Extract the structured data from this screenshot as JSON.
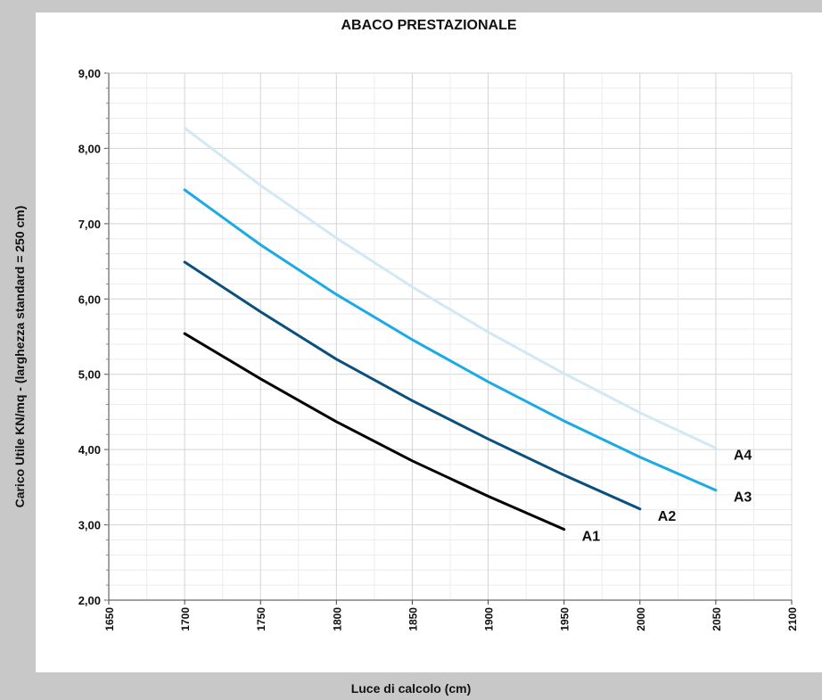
{
  "chart_data": {
    "type": "line",
    "title": "ABACO PRESTAZIONALE",
    "xlabel": "Luce di calcolo (cm)",
    "ylabel": "Carico Utile KN/mq - (larghezza standard = 250 cm)",
    "xlim": [
      1650,
      2100
    ],
    "ylim": [
      2.0,
      9.0
    ],
    "x_ticks": [
      "1650",
      "1700",
      "1750",
      "1800",
      "1850",
      "1900",
      "1950",
      "2000",
      "2050",
      "2100"
    ],
    "y_ticks": [
      "2,00",
      "3,00",
      "4,00",
      "5,00",
      "6,00",
      "7,00",
      "8,00",
      "9,00"
    ],
    "grid": true,
    "legend": "none (labels at line ends)",
    "series": [
      {
        "name": "A1",
        "color": "#000000",
        "x": [
          1700,
          1750,
          1800,
          1850,
          1900,
          1950
        ],
        "y": [
          5.54,
          4.94,
          4.37,
          3.85,
          3.38,
          2.94
        ]
      },
      {
        "name": "A2",
        "color": "#0b4f7c",
        "x": [
          1700,
          1750,
          1800,
          1850,
          1900,
          1950,
          2000
        ],
        "y": [
          6.49,
          5.83,
          5.2,
          4.65,
          4.14,
          3.66,
          3.21
        ]
      },
      {
        "name": "A3",
        "color": "#1aaae6",
        "x": [
          1700,
          1750,
          1800,
          1850,
          1900,
          1950,
          2000,
          2050
        ],
        "y": [
          7.45,
          6.72,
          6.06,
          5.46,
          4.9,
          4.38,
          3.9,
          3.46
        ]
      },
      {
        "name": "A4",
        "color": "#d2e8f5",
        "x": [
          1700,
          1750,
          1800,
          1850,
          1900,
          1950,
          2000,
          2050
        ],
        "y": [
          8.27,
          7.51,
          6.81,
          6.16,
          5.56,
          5.01,
          4.49,
          4.02
        ]
      }
    ]
  }
}
